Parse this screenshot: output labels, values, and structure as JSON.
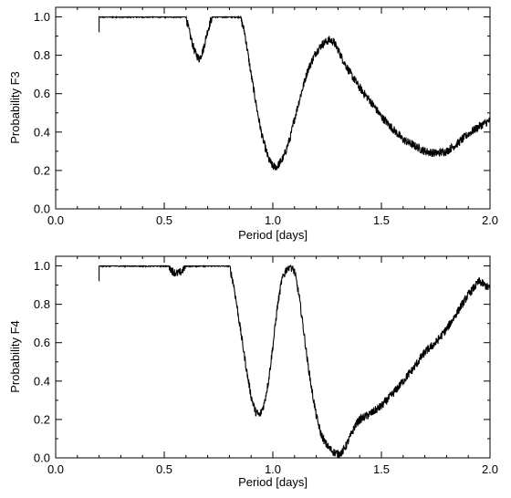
{
  "chart_data": [
    {
      "type": "line",
      "xlabel": "Period [days]",
      "ylabel": "Probability F3",
      "xlim": [
        0.0,
        2.0
      ],
      "ylim": [
        0.0,
        1.05
      ],
      "xticks": [
        "0.0",
        "0.5",
        "1.0",
        "1.5",
        "2.0"
      ],
      "yticks": [
        "0.0",
        "0.2",
        "0.4",
        "0.6",
        "0.8",
        "1.0"
      ],
      "grid": false,
      "line_color": "#000000",
      "series": [
        {
          "x": [
            0.2,
            0.25,
            0.3,
            0.35,
            0.4,
            0.45,
            0.5,
            0.55,
            0.58,
            0.6,
            0.62,
            0.64,
            0.66,
            0.68,
            0.7,
            0.72,
            0.75,
            0.8,
            0.85,
            0.87,
            0.9,
            0.93,
            0.95,
            0.98,
            1.0,
            1.02,
            1.05,
            1.08,
            1.1,
            1.13,
            1.16,
            1.2,
            1.23,
            1.26,
            1.28,
            1.3,
            1.33,
            1.36,
            1.4,
            1.45,
            1.5,
            1.55,
            1.6,
            1.65,
            1.7,
            1.75,
            1.8,
            1.85,
            1.9,
            1.95,
            2.0
          ],
          "y": [
            1.0,
            1.0,
            1.0,
            1.0,
            1.0,
            1.0,
            1.0,
            1.0,
            1.0,
            1.0,
            0.9,
            0.82,
            0.78,
            0.83,
            0.93,
            1.0,
            1.0,
            1.0,
            1.0,
            0.92,
            0.7,
            0.5,
            0.38,
            0.26,
            0.22,
            0.22,
            0.27,
            0.37,
            0.47,
            0.6,
            0.72,
            0.82,
            0.86,
            0.88,
            0.87,
            0.83,
            0.76,
            0.7,
            0.63,
            0.56,
            0.48,
            0.42,
            0.36,
            0.33,
            0.3,
            0.29,
            0.3,
            0.34,
            0.39,
            0.43,
            0.46
          ]
        }
      ]
    },
    {
      "type": "line",
      "xlabel": "Period [days]",
      "ylabel": "Probability F4",
      "xlim": [
        0.0,
        2.0
      ],
      "ylim": [
        0.0,
        1.05
      ],
      "xticks": [
        "0.0",
        "0.5",
        "1.0",
        "1.5",
        "2.0"
      ],
      "yticks": [
        "0.0",
        "0.2",
        "0.4",
        "0.6",
        "0.8",
        "1.0"
      ],
      "grid": false,
      "line_color": "#000000",
      "series": [
        {
          "x": [
            0.2,
            0.25,
            0.3,
            0.35,
            0.4,
            0.45,
            0.5,
            0.52,
            0.54,
            0.56,
            0.58,
            0.6,
            0.65,
            0.7,
            0.75,
            0.8,
            0.82,
            0.84,
            0.86,
            0.88,
            0.9,
            0.92,
            0.94,
            0.96,
            0.98,
            1.0,
            1.02,
            1.04,
            1.06,
            1.08,
            1.1,
            1.12,
            1.14,
            1.16,
            1.18,
            1.2,
            1.22,
            1.24,
            1.26,
            1.28,
            1.3,
            1.32,
            1.34,
            1.36,
            1.38,
            1.4,
            1.45,
            1.5,
            1.55,
            1.6,
            1.65,
            1.7,
            1.75,
            1.8,
            1.85,
            1.9,
            1.95,
            2.0
          ],
          "y": [
            1.0,
            1.0,
            1.0,
            1.0,
            1.0,
            1.0,
            1.0,
            1.0,
            0.97,
            0.96,
            0.97,
            1.0,
            1.0,
            1.0,
            1.0,
            1.0,
            0.9,
            0.75,
            0.6,
            0.45,
            0.32,
            0.24,
            0.22,
            0.28,
            0.4,
            0.58,
            0.78,
            0.92,
            0.98,
            1.0,
            0.97,
            0.85,
            0.68,
            0.5,
            0.35,
            0.22,
            0.13,
            0.08,
            0.05,
            0.03,
            0.02,
            0.03,
            0.07,
            0.12,
            0.17,
            0.2,
            0.23,
            0.27,
            0.33,
            0.4,
            0.47,
            0.55,
            0.6,
            0.67,
            0.76,
            0.85,
            0.92,
            0.88
          ]
        }
      ]
    }
  ]
}
